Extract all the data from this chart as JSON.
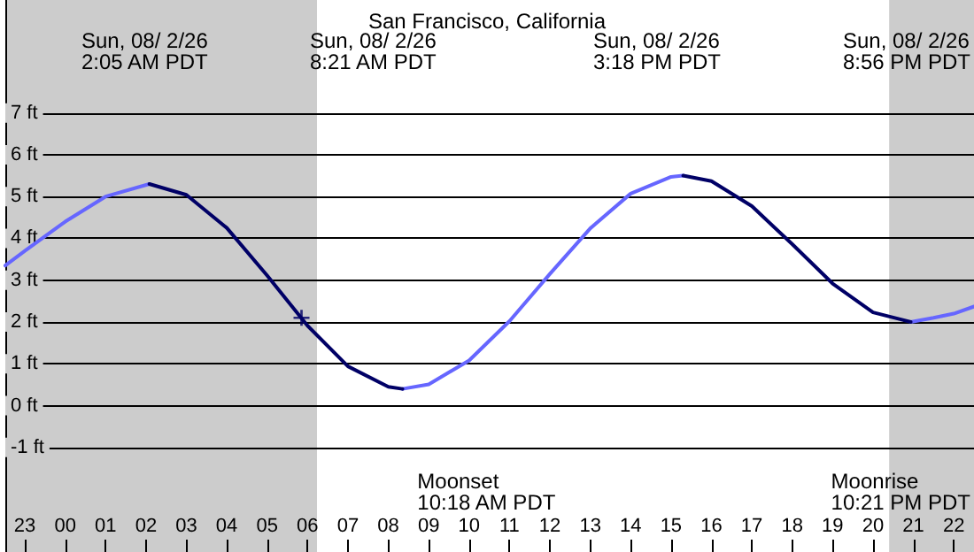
{
  "chart_data": {
    "type": "line",
    "title": "San Francisco, California",
    "xlim": [
      "--08-01T22:31",
      "--08-02T22:30"
    ],
    "ylim": [
      -3.5,
      9.7
    ],
    "xticks": [
      {
        "value": "--08-01T23:00",
        "label": "23"
      },
      {
        "value": "--08-02T00:00",
        "label": "00"
      },
      {
        "value": "--08-02T01:00",
        "label": "01"
      },
      {
        "value": "--08-02T02:00",
        "label": "02"
      },
      {
        "value": "--08-02T03:00",
        "label": "03"
      },
      {
        "value": "--08-02T04:00",
        "label": "04"
      },
      {
        "value": "--08-02T05:00",
        "label": "05"
      },
      {
        "value": "--08-02T06:00",
        "label": "06"
      },
      {
        "value": "--08-02T07:00",
        "label": "07"
      },
      {
        "value": "--08-02T08:00",
        "label": "08"
      },
      {
        "value": "--08-02T09:00",
        "label": "09"
      },
      {
        "value": "--08-02T10:00",
        "label": "10"
      },
      {
        "value": "--08-02T11:00",
        "label": "11"
      },
      {
        "value": "--08-02T12:00",
        "label": "12"
      },
      {
        "value": "--08-02T13:00",
        "label": "13"
      },
      {
        "value": "--08-02T14:00",
        "label": "14"
      },
      {
        "value": "--08-02T15:00",
        "label": "15"
      },
      {
        "value": "--08-02T16:00",
        "label": "16"
      },
      {
        "value": "--08-02T17:00",
        "label": "17"
      },
      {
        "value": "--08-02T18:00",
        "label": "18"
      },
      {
        "value": "--08-02T19:00",
        "label": "19"
      },
      {
        "value": "--08-02T20:00",
        "label": "20"
      },
      {
        "value": "--08-02T21:00",
        "label": "21"
      },
      {
        "value": "--08-02T22:00",
        "label": "22"
      }
    ],
    "yticks": [
      {
        "value": -1,
        "label": "-1 ft"
      },
      {
        "value": 0,
        "label": "0 ft"
      },
      {
        "value": 1,
        "label": "1 ft"
      },
      {
        "value": 2,
        "label": "2 ft"
      },
      {
        "value": 3,
        "label": "3 ft"
      },
      {
        "value": 4,
        "label": "4 ft"
      },
      {
        "value": 5,
        "label": "5 ft"
      },
      {
        "value": 6,
        "label": "6 ft"
      },
      {
        "value": 7,
        "label": "7 ft"
      }
    ],
    "grid": "y",
    "marker": "none",
    "line_style": "solid",
    "bands": [
      {
        "axis": "x",
        "from": "--08-01T22:31",
        "to": "--08-02T06:14",
        "color": "#cccccc"
      },
      {
        "axis": "x",
        "from": "--08-02T20:24",
        "to": "--08-02T22:30",
        "color": "#cccccc"
      }
    ],
    "series": [
      {
        "color": "#6666ff",
        "x": [
          "--08-01T22:31",
          "--08-01T23:00",
          "--08-02T00:00",
          "--08-02T01:00",
          "--08-02T02:05",
          "--08-02T05:00",
          "--08-02T08:21",
          "--08-02T09:00",
          "--08-02T10:00",
          "--08-02T11:00",
          "--08-02T12:00",
          "--08-02T13:00",
          "--08-02T14:00",
          "--08-02T15:00",
          "--08-02T15:18",
          "--08-02T18:00",
          "--08-02T20:56",
          "--08-02T21:30",
          "--08-02T22:00",
          "--08-02T22:30"
        ],
        "values": [
          3.35,
          3.7,
          4.4,
          5.0,
          5.3,
          null,
          0.4,
          0.51,
          1.08,
          2.02,
          3.15,
          4.24,
          5.07,
          5.47,
          5.5,
          null,
          2.0,
          2.1,
          2.2,
          2.37
        ]
      },
      {
        "color": "#000066",
        "x": [
          "--08-02T02:05",
          "--08-02T03:00",
          "--08-02T04:00",
          "--08-02T05:00",
          "--08-02T06:00",
          "--08-02T07:00",
          "--08-02T08:00",
          "--08-02T08:21",
          "--08-02T12:00",
          "--08-02T15:18",
          "--08-02T16:00",
          "--08-02T17:00",
          "--08-02T18:00",
          "--08-02T19:00",
          "--08-02T20:00",
          "--08-02T20:56"
        ],
        "values": [
          5.3,
          5.04,
          4.25,
          3.11,
          1.91,
          0.94,
          0.45,
          0.4,
          null,
          5.5,
          5.37,
          4.77,
          3.86,
          2.92,
          2.23,
          2.0
        ]
      },
      {
        "type": "scatter",
        "marker": "cross",
        "color": "#000066",
        "x": [
          "--08-02T05:51"
        ],
        "values": [
          2.1
        ]
      }
    ],
    "annotations": [
      "Sun, 08/ 2/26\n2:05 AM PDT",
      "Sun, 08/ 2/26\n8:21 AM PDT",
      "Sun, 08/ 2/26\n3:18 PM PDT",
      "Sun, 08/ 2/26\n8:56 PM PDT",
      "Moonset\n10:18 AM PDT",
      "Moonrise\n10:21 PM PDT"
    ]
  }
}
